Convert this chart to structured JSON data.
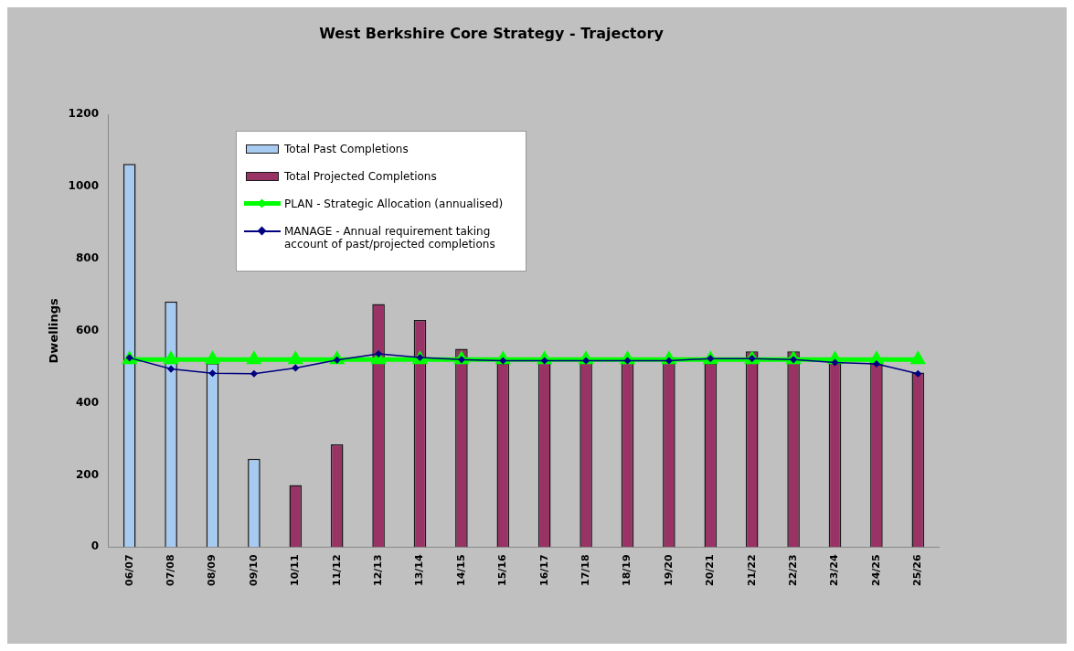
{
  "chart_data": {
    "type": "bar",
    "title": "West Berkshire Core Strategy - Trajectory",
    "ylabel": "Dwellings",
    "categories": [
      "06/07",
      "07/08",
      "08/09",
      "09/10",
      "10/11",
      "11/12",
      "12/13",
      "13/14",
      "14/15",
      "15/16",
      "16/17",
      "17/18",
      "18/19",
      "19/20",
      "20/21",
      "21/22",
      "22/23",
      "23/24",
      "24/25",
      "25/26"
    ],
    "series": [
      {
        "name": "Total Past Completions",
        "color": "#a6caf0",
        "values": [
          1063,
          681,
          510,
          245,
          null,
          null,
          null,
          null,
          null,
          null,
          null,
          null,
          null,
          null,
          null,
          null,
          null,
          null,
          null,
          null
        ]
      },
      {
        "name": "Total Projected Completions",
        "color": "#993366",
        "values": [
          null,
          null,
          null,
          null,
          172,
          285,
          674,
          630,
          550,
          510,
          512,
          512,
          512,
          512,
          510,
          543,
          543,
          510,
          510,
          484
        ]
      },
      {
        "name": "PLAN - Strategic Allocation (annualised)",
        "type": "line",
        "color": "#00ff00",
        "marker": "triangle",
        "values": [
          520,
          520,
          520,
          520,
          520,
          520,
          520,
          520,
          520,
          520,
          520,
          520,
          520,
          520,
          520,
          520,
          520,
          520,
          520,
          520
        ]
      },
      {
        "name": "MANAGE - Annual requirement taking account of past/projected completions",
        "type": "line",
        "color": "#000080",
        "marker": "diamond",
        "values": [
          525,
          494,
          482,
          481,
          497,
          519,
          536,
          526,
          520,
          517,
          517,
          517,
          517,
          517,
          523,
          523,
          520,
          512,
          508,
          481
        ]
      }
    ],
    "ylim": [
      0,
      1200
    ],
    "yticks": [
      0,
      200,
      400,
      600,
      800,
      1000,
      1200
    ],
    "grid": false,
    "legend": "top left"
  }
}
